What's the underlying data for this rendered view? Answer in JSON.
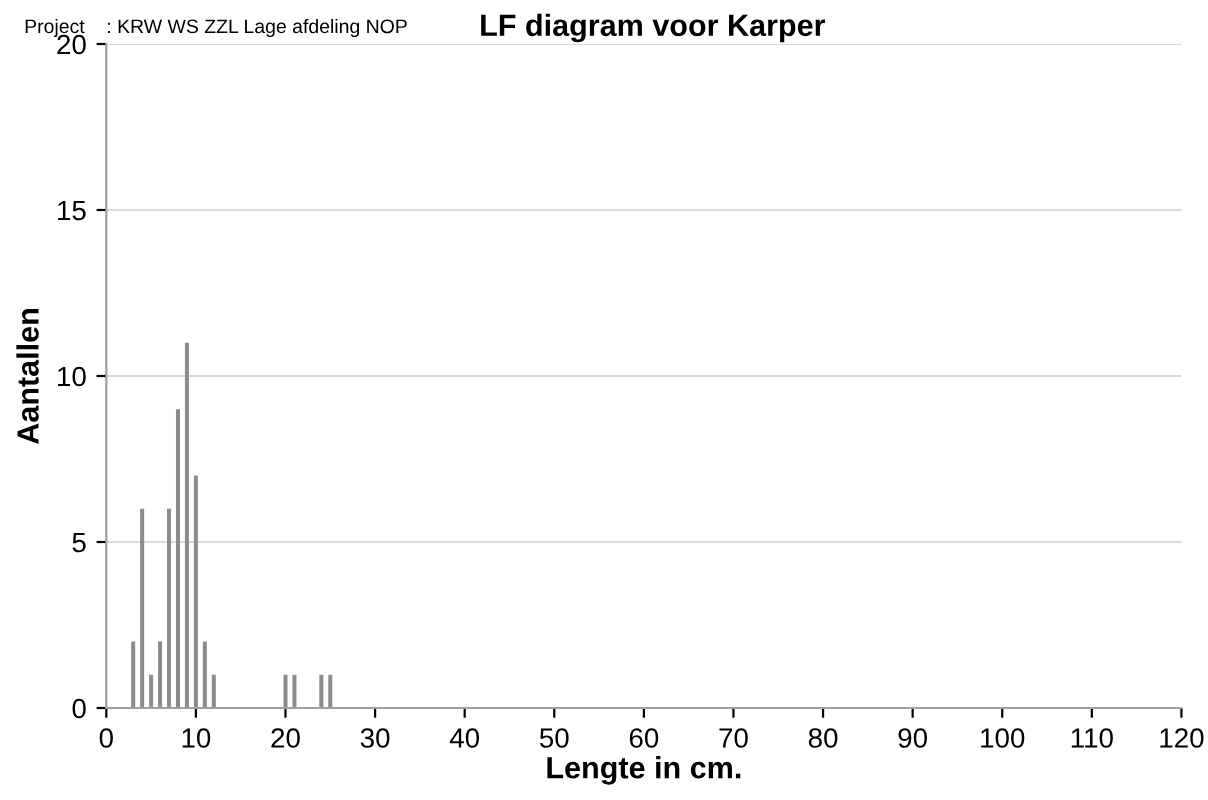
{
  "chart_data": {
    "type": "bar",
    "title": "LF diagram voor Karper",
    "subtitle": "Project    : KRW WS ZZL Lage afdeling NOP",
    "xlabel": "Lengte in cm.",
    "ylabel": "Aantallen",
    "x": [
      3,
      4,
      5,
      6,
      7,
      8,
      9,
      10,
      11,
      12,
      20,
      21,
      24,
      25
    ],
    "series": [
      {
        "color": "#8c8c8c",
        "values": [
          2,
          6,
          1,
          2,
          6,
          9,
          11,
          7,
          2,
          1,
          1,
          1,
          1,
          1
        ]
      }
    ],
    "xlim": [
      0,
      120
    ],
    "xticks": [
      0,
      10,
      20,
      30,
      40,
      50,
      60,
      70,
      80,
      90,
      100,
      110,
      120
    ],
    "ylim": [
      0,
      20
    ],
    "yticks": [
      0,
      5,
      10,
      15,
      20
    ],
    "grid": "y",
    "legend": false
  }
}
